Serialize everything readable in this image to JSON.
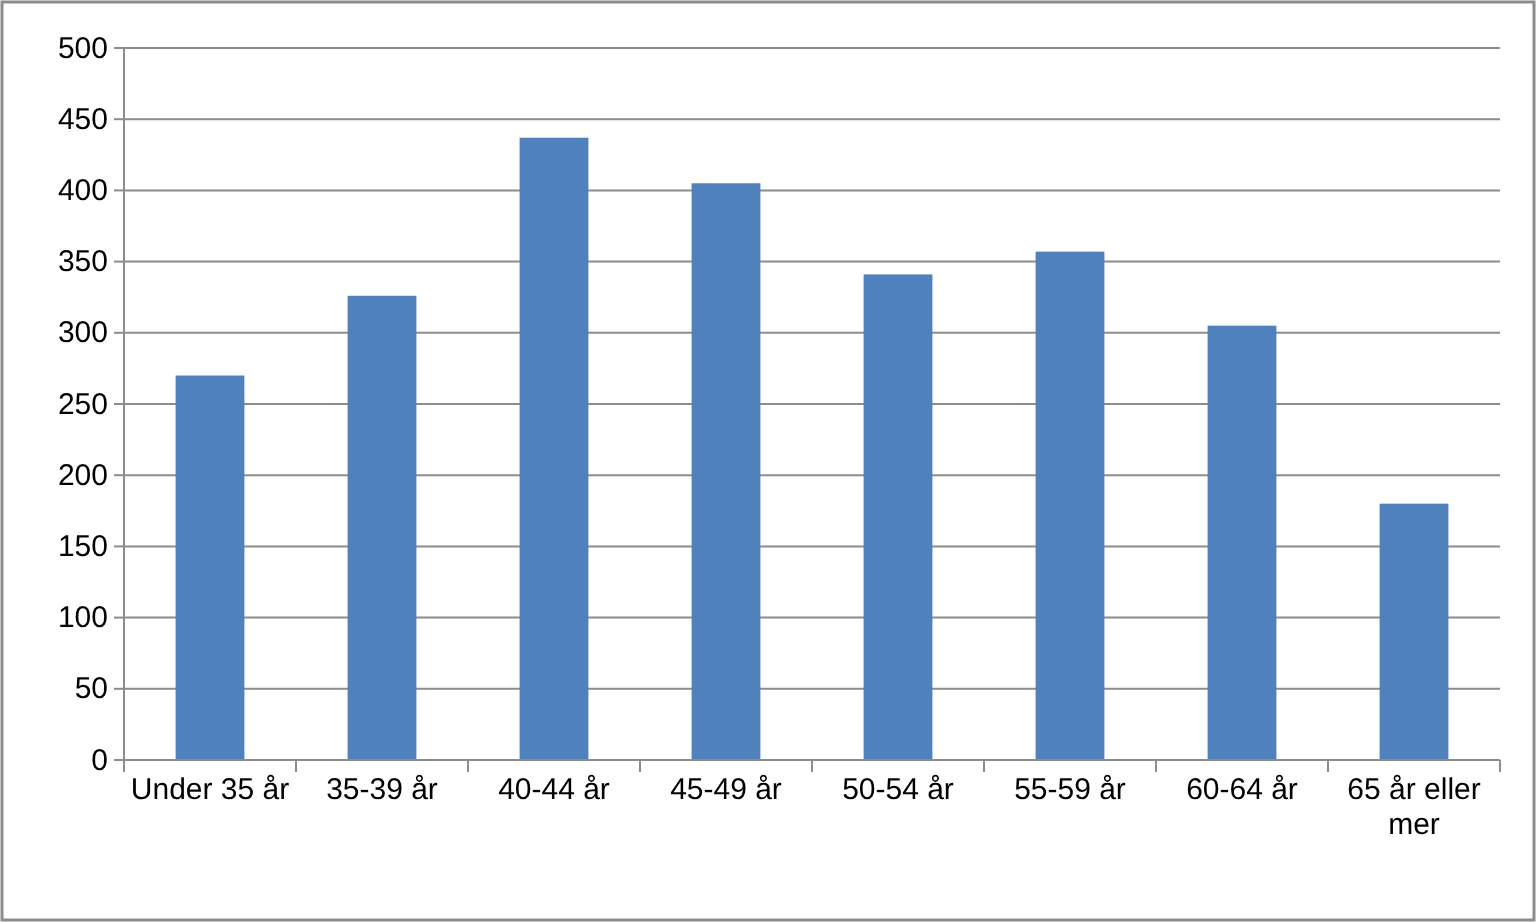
{
  "chart_data": {
    "type": "bar",
    "categories": [
      "Under 35 år",
      "35-39 år",
      "40-44 år",
      "45-49 år",
      "50-54 år",
      "55-59 år",
      "60-64 år",
      "65 år eller mer"
    ],
    "values": [
      270,
      326,
      437,
      405,
      341,
      357,
      305,
      180
    ],
    "color": "#4f81bd",
    "ylim": [
      0,
      500
    ],
    "yticks": [
      0,
      50,
      100,
      150,
      200,
      250,
      300,
      350,
      400,
      450,
      500
    ],
    "grid": "y"
  }
}
